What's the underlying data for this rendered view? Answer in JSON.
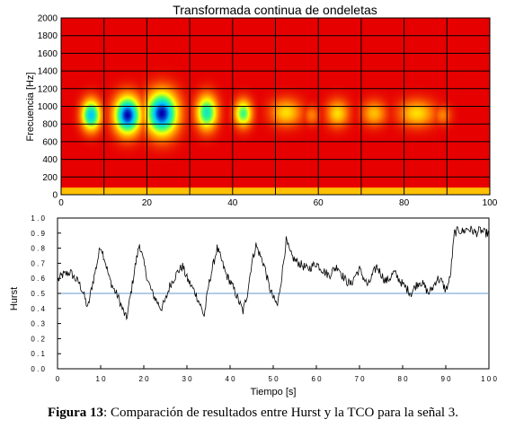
{
  "figure": {
    "caption_label": "Figura 13",
    "caption_text": ": Comparación de resultados entre Hurst y la TCO para la señal 3."
  },
  "chart_data": [
    {
      "type": "heatmap",
      "title": "Transformada continua de ondeletas",
      "xlabel": "",
      "ylabel": "Frecuencia [Hz]",
      "xlim": [
        0,
        100
      ],
      "ylim": [
        0,
        2000
      ],
      "x_ticks": [
        0,
        20,
        40,
        60,
        80,
        100
      ],
      "y_ticks": [
        0,
        200,
        400,
        600,
        800,
        1000,
        1200,
        1400,
        1600,
        1800,
        2000
      ],
      "grid": true,
      "colormap": [
        "#0000b0",
        "#00c8ff",
        "#30ff80",
        "#ffff00",
        "#ff8000",
        "#e60000"
      ],
      "background_level": 0.0,
      "low_band": {
        "ymin": 0,
        "ymax": 80,
        "level": 0.3
      },
      "blobs": [
        {
          "x": 7,
          "y": 900,
          "rx": 2.2,
          "ry": 170,
          "peak": 0.8
        },
        {
          "x": 15.5,
          "y": 900,
          "rx": 3.0,
          "ry": 210,
          "peak": 1.0
        },
        {
          "x": 23.5,
          "y": 920,
          "rx": 3.6,
          "ry": 240,
          "peak": 1.0
        },
        {
          "x": 34,
          "y": 930,
          "rx": 2.4,
          "ry": 190,
          "peak": 0.7
        },
        {
          "x": 42.5,
          "y": 920,
          "rx": 2.0,
          "ry": 150,
          "peak": 0.6
        },
        {
          "x": 52.5,
          "y": 930,
          "rx": 3.6,
          "ry": 150,
          "peak": 0.35
        },
        {
          "x": 58.5,
          "y": 900,
          "rx": 1.8,
          "ry": 110,
          "peak": 0.2
        },
        {
          "x": 64.5,
          "y": 920,
          "rx": 2.6,
          "ry": 150,
          "peak": 0.35
        },
        {
          "x": 73,
          "y": 920,
          "rx": 2.8,
          "ry": 140,
          "peak": 0.3
        },
        {
          "x": 83,
          "y": 920,
          "rx": 4.2,
          "ry": 150,
          "peak": 0.35
        },
        {
          "x": 89,
          "y": 900,
          "rx": 2.0,
          "ry": 110,
          "peak": 0.2
        }
      ]
    },
    {
      "type": "line",
      "title": "",
      "xlabel": "Tiempo [s]",
      "ylabel": "Hurst",
      "xlim": [
        0,
        100
      ],
      "ylim": [
        0,
        1
      ],
      "x_tick_labels": [
        "0",
        "1 0",
        "2 0",
        "3 0",
        "4 0",
        "5 0",
        "6 0",
        "7 0",
        "8 0",
        "9 0",
        "1 0 0"
      ],
      "y_tick_labels": [
        "0 . 0",
        "0 . 1",
        "0 . 2",
        "0 . 3",
        "0 . 4",
        "0 . 5",
        "0 . 6",
        "0 . 7",
        "0 . 8",
        "0 . 9",
        "1 . 0"
      ],
      "reference_line": {
        "y": 0.5,
        "color": "#6699cc"
      },
      "series_color": "#000000",
      "noise_amplitude": 0.03,
      "series": [
        {
          "x": [
            0,
            1,
            2,
            3,
            4,
            5,
            6,
            7,
            8,
            9,
            10,
            11,
            12,
            13,
            14,
            15,
            16,
            17,
            18,
            19,
            20,
            21,
            22,
            23,
            24,
            25,
            26,
            27,
            28,
            29,
            30,
            31,
            32,
            33,
            34,
            35,
            36,
            37,
            38,
            39,
            40,
            41,
            42,
            43,
            44,
            45,
            46,
            47,
            48,
            49,
            50,
            51,
            52,
            53,
            54,
            55,
            56,
            57,
            58,
            59,
            60,
            61,
            62,
            63,
            64,
            65,
            66,
            67,
            68,
            69,
            70,
            71,
            72,
            73,
            74,
            75,
            76,
            77,
            78,
            79,
            80,
            81,
            82,
            83,
            84,
            85,
            86,
            87,
            88,
            89,
            90,
            91,
            92,
            93,
            94,
            95,
            96,
            97,
            98,
            99,
            100
          ],
          "y": [
            0.58,
            0.62,
            0.63,
            0.64,
            0.6,
            0.57,
            0.5,
            0.4,
            0.55,
            0.68,
            0.82,
            0.72,
            0.6,
            0.53,
            0.48,
            0.4,
            0.33,
            0.5,
            0.68,
            0.83,
            0.7,
            0.58,
            0.5,
            0.45,
            0.4,
            0.45,
            0.55,
            0.6,
            0.65,
            0.68,
            0.6,
            0.55,
            0.5,
            0.43,
            0.35,
            0.55,
            0.68,
            0.8,
            0.72,
            0.63,
            0.58,
            0.52,
            0.45,
            0.38,
            0.5,
            0.7,
            0.82,
            0.75,
            0.68,
            0.55,
            0.47,
            0.42,
            0.62,
            0.85,
            0.76,
            0.72,
            0.7,
            0.68,
            0.66,
            0.68,
            0.7,
            0.67,
            0.64,
            0.62,
            0.66,
            0.68,
            0.62,
            0.58,
            0.56,
            0.62,
            0.66,
            0.6,
            0.55,
            0.62,
            0.68,
            0.63,
            0.58,
            0.6,
            0.64,
            0.6,
            0.56,
            0.53,
            0.5,
            0.55,
            0.58,
            0.55,
            0.5,
            0.54,
            0.6,
            0.58,
            0.52,
            0.6,
            0.9,
            0.92,
            0.91,
            0.93,
            0.92,
            0.9,
            0.92,
            0.9,
            0.9
          ]
        }
      ]
    }
  ]
}
